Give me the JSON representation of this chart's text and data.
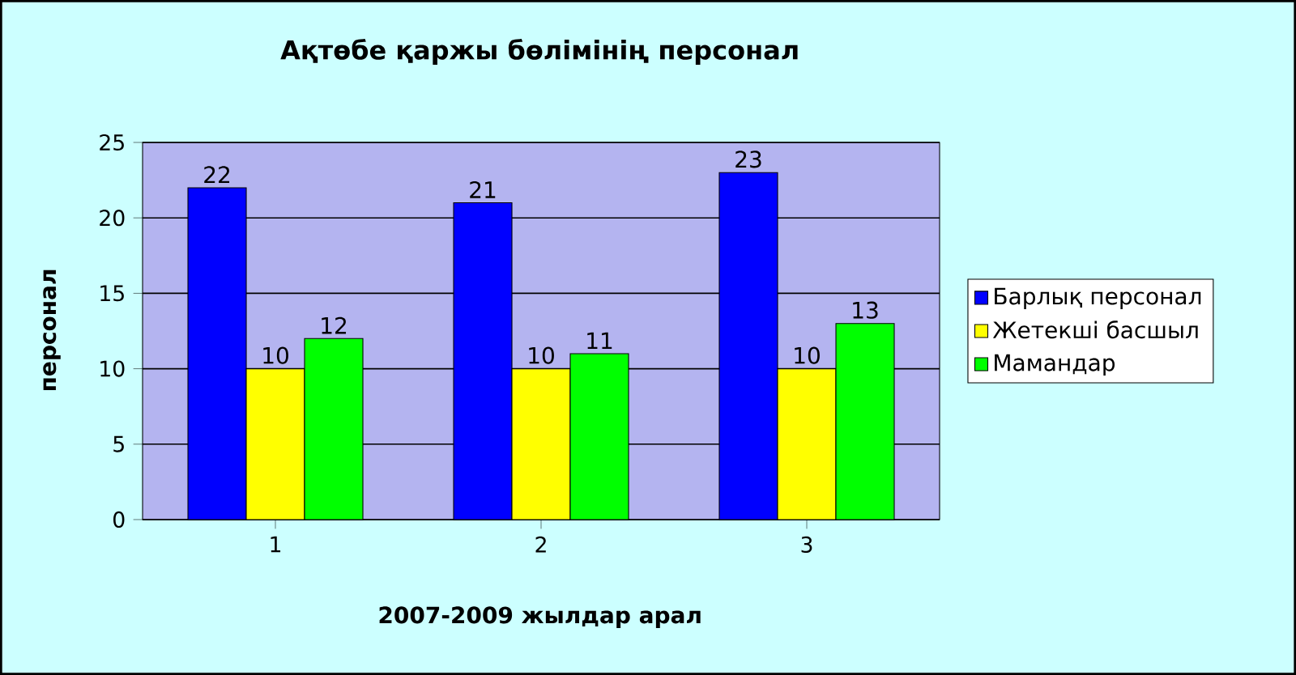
{
  "chart_data": {
    "type": "bar",
    "title": "Ақтөбе қаржы бөлімінің персонал",
    "xlabel": "2007-2009 жылдар арал",
    "ylabel": "персонал",
    "categories": [
      "1",
      "2",
      "3"
    ],
    "series": [
      {
        "name": "Барлық персонал",
        "color": "#0000ff",
        "values": [
          22,
          21,
          23
        ]
      },
      {
        "name": "Жетекші басшыл",
        "color": "#ffff00",
        "values": [
          10,
          10,
          10
        ]
      },
      {
        "name": "Мамандар",
        "color": "#00ff00",
        "values": [
          12,
          11,
          13
        ]
      }
    ],
    "ylim": [
      0,
      25
    ],
    "yticks": [
      0,
      5,
      10,
      15,
      20,
      25
    ],
    "grid": "y",
    "legend": "right",
    "data_labels": true
  }
}
